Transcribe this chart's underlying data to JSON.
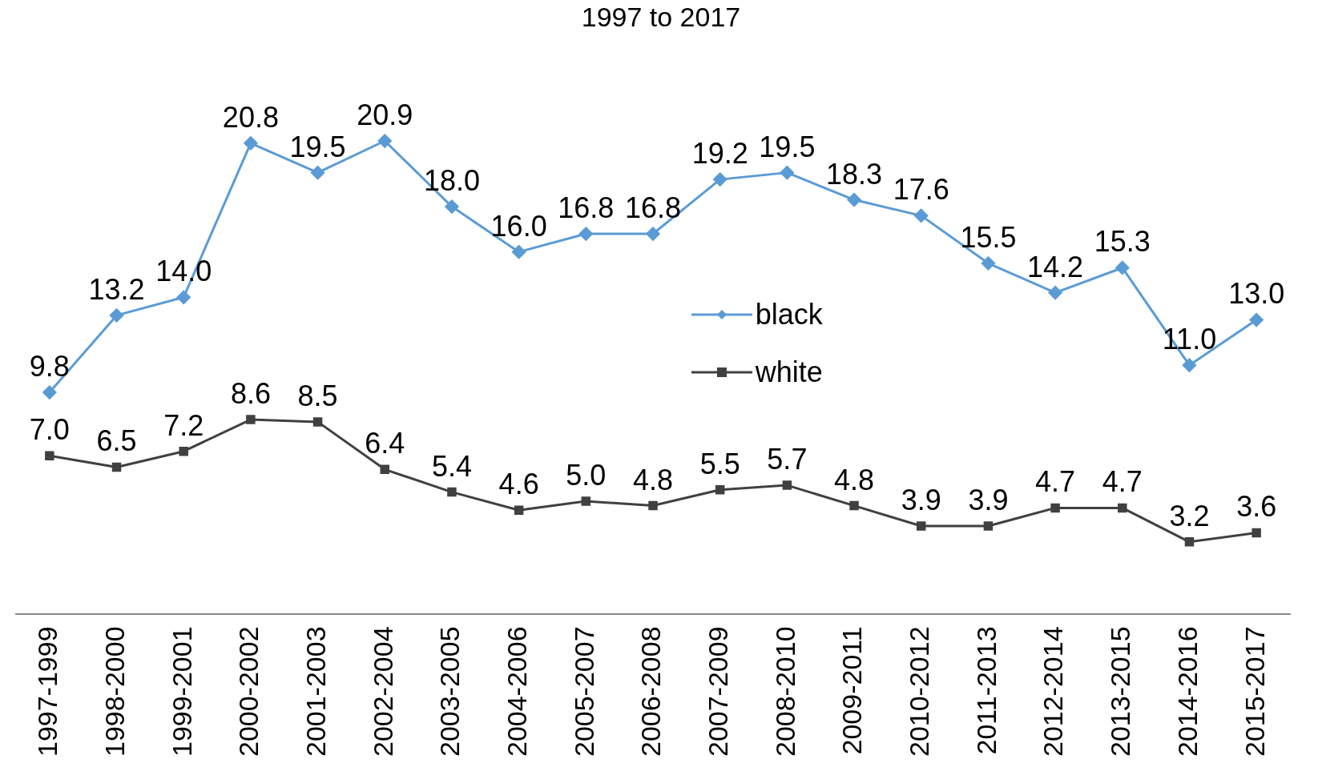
{
  "chart_data": {
    "type": "line",
    "title": "1997 to 2017",
    "categories": [
      "1997-1999",
      "1998-2000",
      "1999-2001",
      "2000-2002",
      "2001-2003",
      "2002-2004",
      "2003-2005",
      "2004-2006",
      "2005-2007",
      "2006-2008",
      "2007-2009",
      "2008-2010",
      "2009-2011",
      "2010-2012",
      "2011-2013",
      "2012-2014",
      "2013-2015",
      "2014-2016",
      "2015-2017"
    ],
    "series": [
      {
        "name": "black",
        "color": "#5b9bd5",
        "marker": "diamond",
        "values": [
          9.8,
          13.2,
          14.0,
          20.8,
          19.5,
          20.9,
          18.0,
          16.0,
          16.8,
          16.8,
          19.2,
          19.5,
          18.3,
          17.6,
          15.5,
          14.2,
          15.3,
          11.0,
          13.0
        ],
        "value_labels": [
          "9.8",
          "13.2",
          "14.0",
          "20.8",
          "19.5",
          "20.9",
          "18.0",
          "16.0",
          "16.8",
          "16.8",
          "19.2",
          "19.5",
          "18.3",
          "17.6",
          "15.5",
          "14.2",
          "15.3",
          "11.0",
          "13.0"
        ]
      },
      {
        "name": "white",
        "color": "#404040",
        "marker": "square",
        "values": [
          7.0,
          6.5,
          7.2,
          8.6,
          8.5,
          6.4,
          5.4,
          4.6,
          5.0,
          4.8,
          5.5,
          5.7,
          4.8,
          3.9,
          3.9,
          4.7,
          4.7,
          3.2,
          3.6
        ],
        "value_labels": [
          "7.0",
          "6.5",
          "7.2",
          "8.6",
          "8.5",
          "6.4",
          "5.4",
          "4.6",
          "5.0",
          "4.8",
          "5.5",
          "5.7",
          "4.8",
          "3.9",
          "3.9",
          "4.7",
          "4.7",
          "3.2",
          "3.6"
        ]
      }
    ],
    "tick_labels": "x",
    "grid": false,
    "legend": "center"
  }
}
